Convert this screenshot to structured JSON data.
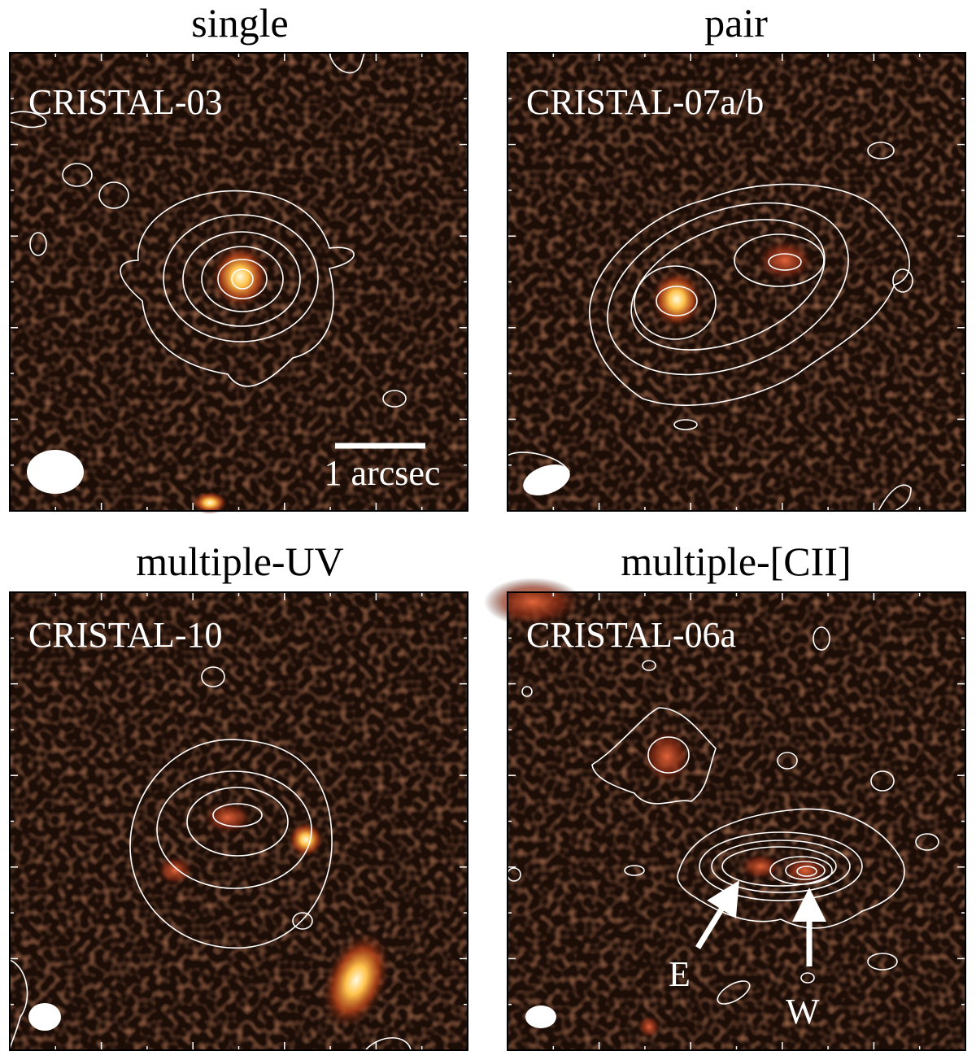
{
  "panels": [
    {
      "title": "single",
      "label": "CRISTAL-03",
      "scale_bar": "1 arcsec"
    },
    {
      "title": "pair",
      "label": "CRISTAL-07a/b"
    },
    {
      "title": "multiple-UV",
      "label": "CRISTAL-10"
    },
    {
      "title": "multiple-[CII]",
      "label": "CRISTAL-06a",
      "annotations": [
        "E",
        "W"
      ]
    }
  ]
}
